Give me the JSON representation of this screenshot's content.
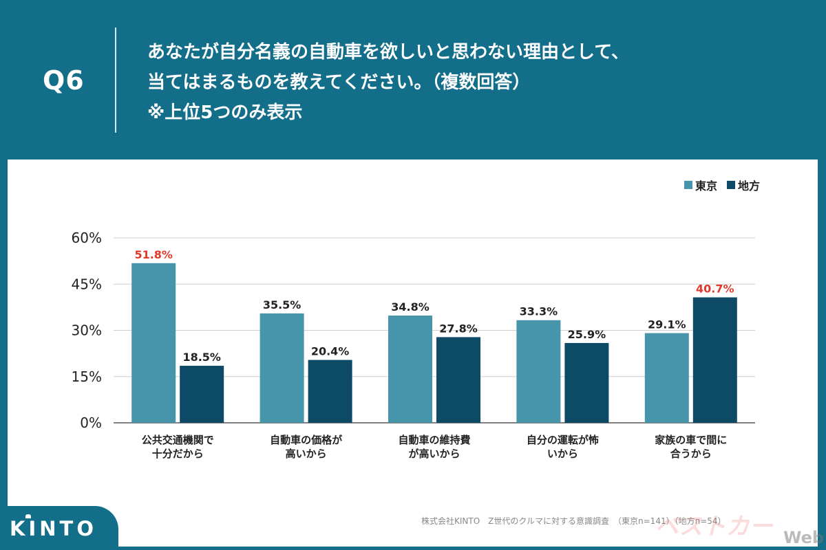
{
  "header": {
    "question_number": "Q6",
    "title_lines": [
      "あなたが自分名義の自動車を欲しいと思わない理由として、",
      "当てはまるものを教えてください。（複数回答）",
      "※上位5つのみ表示"
    ]
  },
  "colors": {
    "background": "#136e8a",
    "tokyo": "#4795aa",
    "regional": "#0d4a66",
    "highlight": "#e0392b"
  },
  "chart_data": {
    "type": "bar",
    "categories": [
      [
        "公共交通機関で",
        "十分だから"
      ],
      [
        "自動車の価格が",
        "高いから"
      ],
      [
        "自動車の維持費",
        "が高いから"
      ],
      [
        "自分の運転が怖",
        "いから"
      ],
      [
        "家族の車で間に",
        "合うから"
      ]
    ],
    "series": [
      {
        "name": "東京",
        "values": [
          51.8,
          35.5,
          34.8,
          33.3,
          29.1
        ],
        "labels": [
          "51.8%",
          "35.5%",
          "34.8%",
          "33.3%",
          "29.1%"
        ],
        "color": "#4795aa"
      },
      {
        "name": "地方",
        "values": [
          18.5,
          20.4,
          27.8,
          25.9,
          40.7
        ],
        "labels": [
          "18.5%",
          "20.4%",
          "27.8%",
          "25.9%",
          "40.7%"
        ],
        "color": "#0d4a66"
      }
    ],
    "highlighted": [
      {
        "series": 0,
        "index": 0
      },
      {
        "series": 1,
        "index": 4
      }
    ],
    "yticks": [
      "0%",
      "15%",
      "30%",
      "45%",
      "60%"
    ],
    "ylim": [
      0,
      60
    ],
    "grid": true,
    "legend_position": "top-right"
  },
  "footer": {
    "source": "株式会社KINTO　Z世代のクルマに対する意識調査　（東京n=141）（地方n=54）",
    "logo": "KINTO",
    "watermark": "ベストカー",
    "watermark_web": "Web"
  }
}
